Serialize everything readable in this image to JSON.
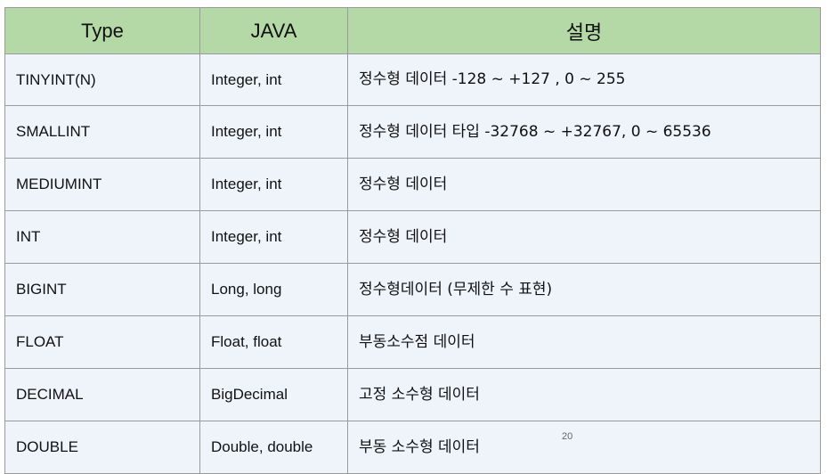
{
  "table": {
    "headers": [
      "Type",
      "JAVA",
      "설명"
    ],
    "rows": [
      {
        "type": "TINYINT(N)",
        "java": "Integer, int",
        "desc": "정수형 데이터 -128 ~ +127 , 0 ~ 255"
      },
      {
        "type": "SMALLINT",
        "java": "Integer, int",
        "desc": "정수형 데이터 타입 -32768 ~ +32767, 0 ~ 65536"
      },
      {
        "type": "MEDIUMINT",
        "java": "Integer, int",
        "desc": "정수형 데이터"
      },
      {
        "type": "INT",
        "java": "Integer, int",
        "desc": "정수형 데이터"
      },
      {
        "type": "BIGINT",
        "java": "Long, long",
        "desc": "정수형데이터 (무제한 수 표현)"
      },
      {
        "type": "FLOAT",
        "java": "Float, float",
        "desc": "부동소수점 데이터"
      },
      {
        "type": "DECIMAL",
        "java": "BigDecimal",
        "desc": "고정 소수형 데이터"
      },
      {
        "type": "DOUBLE",
        "java": "Double, double",
        "desc": "부동 소수형 데이터"
      }
    ]
  },
  "page_number": "20",
  "colors": {
    "header_background": "#b5d9a6",
    "row_background": "#eff3fa",
    "border": "#9a9a9a"
  }
}
